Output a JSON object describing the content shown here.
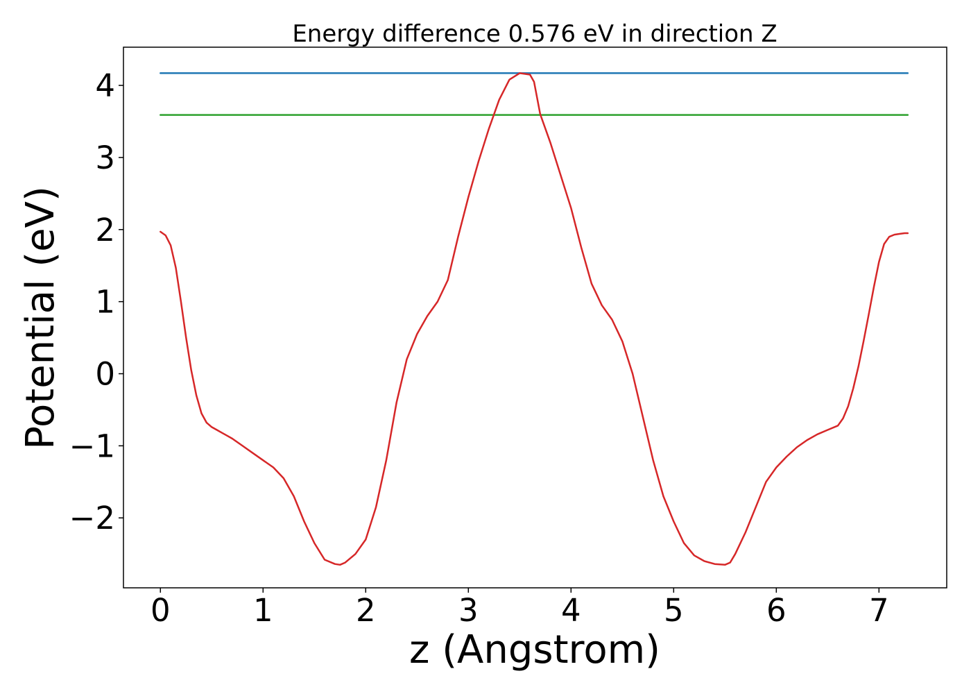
{
  "chart_data": {
    "type": "line",
    "title": "Energy difference 0.576 eV in direction Z",
    "xlabel": "z (Angstrom)",
    "ylabel": "Potential (eV)",
    "xlim": [
      -0.36,
      7.66
    ],
    "ylim": [
      -2.97,
      4.53
    ],
    "xticks": [
      0,
      1,
      2,
      3,
      4,
      5,
      6,
      7
    ],
    "yticks": [
      -2,
      -1,
      0,
      1,
      2,
      3,
      4
    ],
    "grid": false,
    "legend": "none",
    "series": [
      {
        "color": "#1f77b4",
        "x": [
          0,
          7.28
        ],
        "y": [
          4.17,
          4.17
        ]
      },
      {
        "color": "#2ca02c",
        "x": [
          0,
          7.28
        ],
        "y": [
          3.59,
          3.59
        ]
      },
      {
        "color": "#d62728",
        "x": [
          0,
          0.05,
          0.1,
          0.15,
          0.2,
          0.25,
          0.3,
          0.35,
          0.4,
          0.45,
          0.5,
          0.55,
          0.6,
          0.65,
          0.7,
          0.8,
          0.9,
          1.0,
          1.1,
          1.2,
          1.3,
          1.4,
          1.5,
          1.6,
          1.7,
          1.75,
          1.8,
          1.9,
          2.0,
          2.1,
          2.2,
          2.3,
          2.4,
          2.5,
          2.6,
          2.7,
          2.8,
          2.9,
          3.0,
          3.1,
          3.2,
          3.3,
          3.4,
          3.5,
          3.6,
          3.64,
          3.7,
          3.8,
          3.9,
          4.0,
          4.1,
          4.2,
          4.3,
          4.4,
          4.5,
          4.6,
          4.7,
          4.8,
          4.9,
          5.0,
          5.1,
          5.2,
          5.3,
          5.4,
          5.5,
          5.55,
          5.6,
          5.7,
          5.8,
          5.9,
          6.0,
          6.1,
          6.2,
          6.3,
          6.4,
          6.5,
          6.6,
          6.65,
          6.7,
          6.75,
          6.8,
          6.85,
          6.9,
          6.95,
          7.0,
          7.05,
          7.1,
          7.15,
          7.2,
          7.25,
          7.28
        ],
        "y": [
          1.97,
          1.92,
          1.78,
          1.47,
          1.0,
          0.5,
          0.05,
          -0.3,
          -0.55,
          -0.68,
          -0.74,
          -0.78,
          -0.82,
          -0.86,
          -0.9,
          -1.0,
          -1.1,
          -1.2,
          -1.3,
          -1.45,
          -1.7,
          -2.05,
          -2.35,
          -2.58,
          -2.64,
          -2.65,
          -2.62,
          -2.5,
          -2.3,
          -1.85,
          -1.2,
          -0.4,
          0.2,
          0.55,
          0.8,
          1.0,
          1.3,
          1.9,
          2.45,
          2.95,
          3.4,
          3.8,
          4.08,
          4.17,
          4.15,
          4.05,
          3.6,
          3.2,
          2.75,
          2.3,
          1.75,
          1.25,
          0.95,
          0.75,
          0.45,
          0.0,
          -0.6,
          -1.2,
          -1.7,
          -2.05,
          -2.35,
          -2.52,
          -2.6,
          -2.64,
          -2.65,
          -2.62,
          -2.5,
          -2.2,
          -1.85,
          -1.5,
          -1.3,
          -1.15,
          -1.02,
          -0.92,
          -0.84,
          -0.78,
          -0.72,
          -0.62,
          -0.45,
          -0.2,
          0.1,
          0.45,
          0.82,
          1.2,
          1.55,
          1.8,
          1.9,
          1.93,
          1.94,
          1.95,
          1.95
        ]
      }
    ]
  }
}
